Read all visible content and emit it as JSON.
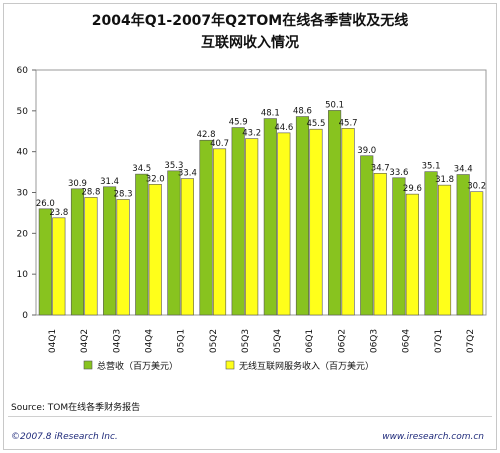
{
  "chart_data": {
    "type": "bar",
    "title_lines": [
      "2004年Q1-2007年Q2TOM在线各季营收及无线",
      "互联网收入情况"
    ],
    "categories": [
      "04Q1",
      "04Q2",
      "04Q3",
      "04Q4",
      "05Q1",
      "05Q2",
      "05Q3",
      "05Q4",
      "06Q1",
      "06Q2",
      "06Q3",
      "06Q4",
      "07Q1",
      "07Q2"
    ],
    "series": [
      {
        "name": "总营收（百万美元）",
        "color": "#88c31f",
        "values": [
          26.0,
          30.9,
          31.4,
          34.5,
          35.3,
          42.8,
          45.9,
          48.1,
          48.6,
          50.1,
          39.0,
          33.6,
          35.1,
          34.4
        ]
      },
      {
        "name": "无线互联网服务收入（百万美元）",
        "color": "#ffff1a",
        "values": [
          23.8,
          28.8,
          28.3,
          32.0,
          33.4,
          40.7,
          43.2,
          44.6,
          45.5,
          45.7,
          34.7,
          29.6,
          31.8,
          30.2
        ]
      }
    ],
    "ylim": [
      0,
      60
    ],
    "yticks": [
      0,
      10,
      20,
      30,
      40,
      50,
      60
    ],
    "xlabel": "",
    "ylabel": "",
    "grid": false,
    "legend": "bottom"
  },
  "footer": {
    "source": "Source: TOM在线各季财务报告",
    "copyright": "©2007.8 iResearch Inc.",
    "website": "www.iresearch.com.cn"
  }
}
